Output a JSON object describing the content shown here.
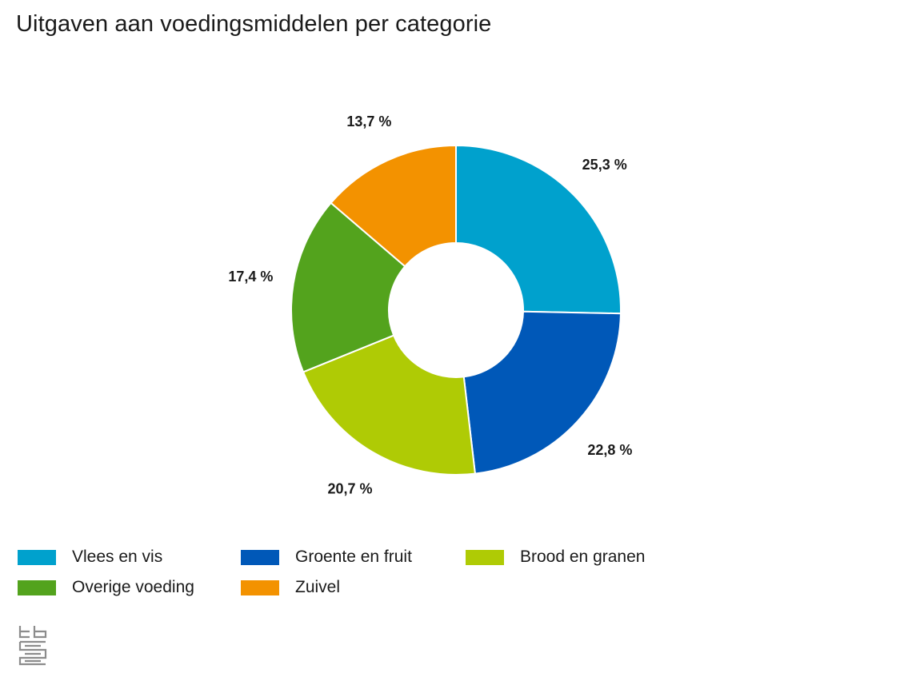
{
  "chart_data": {
    "type": "pie",
    "variant": "donut",
    "title": "Uitgaven aan voedingsmiddelen per categorie",
    "categories": [
      "Vlees en vis",
      "Groente en fruit",
      "Brood en granen",
      "Overige voeding",
      "Zuivel"
    ],
    "values": [
      25.3,
      22.8,
      20.7,
      17.4,
      13.7
    ],
    "value_labels": [
      "25,3 %",
      "22,8 %",
      "20,7 %",
      "17,4 %",
      "13,7 %"
    ],
    "colors": [
      "#00a1cd",
      "#0058b8",
      "#afcb05",
      "#53a31d",
      "#f39200"
    ],
    "legend_position": "bottom-left",
    "start": "top, clockwise"
  },
  "legend": {
    "items": [
      {
        "label": "Vlees en vis",
        "color": "#00a1cd"
      },
      {
        "label": "Groente en fruit",
        "color": "#0058b8"
      },
      {
        "label": "Brood en granen",
        "color": "#afcb05"
      },
      {
        "label": "Overige voeding",
        "color": "#53a31d"
      },
      {
        "label": "Zuivel",
        "color": "#f39200"
      }
    ]
  },
  "logo": {
    "icon": "cbs-logo-icon",
    "color": "#8c8c8c"
  }
}
